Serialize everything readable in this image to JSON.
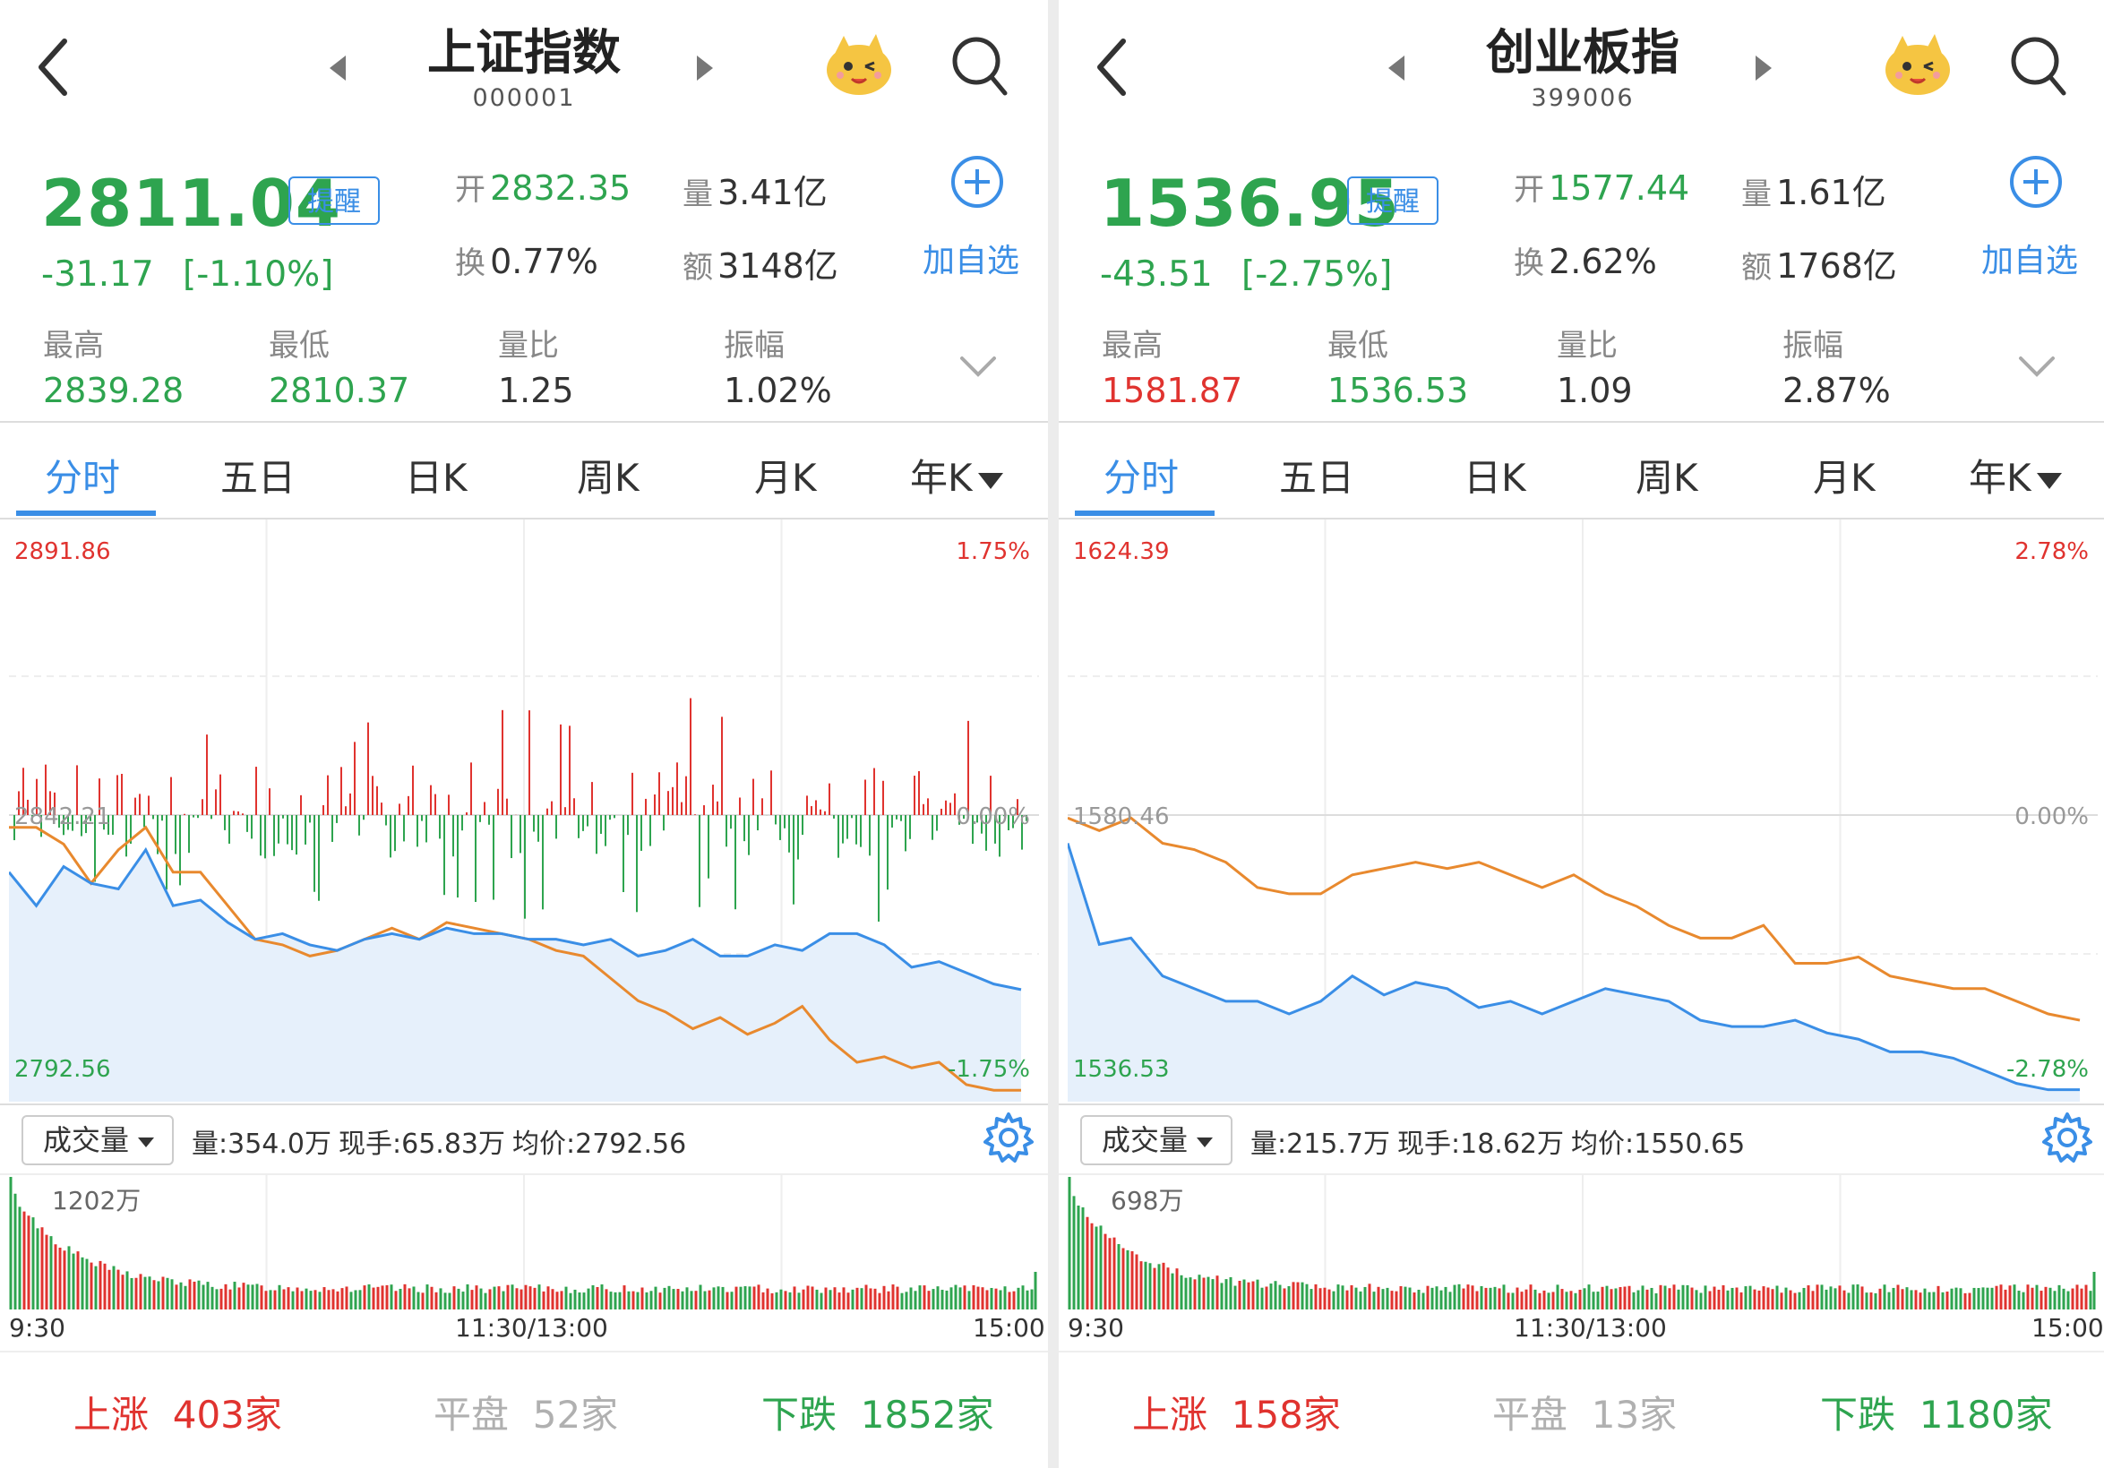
{
  "colors": {
    "green": "#2ea44f",
    "red": "#e0332f",
    "blue": "#3a8ee6",
    "orange": "#e8892e",
    "fill": "#e6f0fb"
  },
  "icons": [
    "back-arrow-icon",
    "prev-triangle-icon",
    "next-triangle-icon",
    "mascot-icon",
    "search-icon",
    "add-circle-icon",
    "chevron-down-icon",
    "settings-gear-icon",
    "dropdown-caret-icon"
  ],
  "panels": [
    {
      "title": "上证指数",
      "code": "000001",
      "price": "2811.04",
      "remind": "提醒",
      "change": "-31.17",
      "change_pct": "[-1.10%]",
      "stats": {
        "open_label": "开",
        "open": "2832.35",
        "volume_label": "量",
        "volume": "3.41亿",
        "turnover_label": "换",
        "turnover": "0.77%",
        "amount_label": "额",
        "amount": "3148亿"
      },
      "add_label": "加自选",
      "range": {
        "high_label": "最高",
        "high": "2839.28",
        "low_label": "最低",
        "low": "2810.37",
        "vr_label": "量比",
        "vr": "1.25",
        "amp_label": "振幅",
        "amp": "1.02%"
      },
      "tabs": [
        "分时",
        "五日",
        "日K",
        "周K",
        "月K",
        "年K"
      ],
      "chart_data": {
        "type": "line",
        "y_top": "2891.86",
        "y_top_pct": "1.75%",
        "y_mid": "2842.21",
        "y_mid_pct": "0.00%",
        "y_bottom": "2792.56",
        "y_bottom_pct": "-1.75%",
        "ylim": [
          2792.56,
          2891.86
        ],
        "prev_close": 2842.21,
        "series": [
          {
            "color": "blue",
            "values": [
              2832,
              2826,
              2833,
              2830,
              2829,
              2836,
              2826,
              2827,
              2823,
              2820,
              2821,
              2819,
              2818,
              2820,
              2821,
              2820,
              2822,
              2821,
              2821,
              2820,
              2820,
              2819,
              2820,
              2817,
              2818,
              2820,
              2817,
              2817,
              2819,
              2818,
              2821,
              2821,
              2819,
              2815,
              2816,
              2814,
              2812,
              2811
            ]
          },
          {
            "color": "orange",
            "values": [
              2840,
              2840,
              2837,
              2830,
              2836,
              2840,
              2832,
              2832,
              2826,
              2820,
              2819,
              2817,
              2818,
              2820,
              2822,
              2820,
              2823,
              2822,
              2821,
              2820,
              2818,
              2817,
              2813,
              2809,
              2807,
              2804,
              2806,
              2803,
              2805,
              2808,
              2802,
              2798,
              2799,
              2797,
              2798,
              2794,
              2793,
              2793
            ]
          }
        ]
      },
      "volume_ctrl": "成交量",
      "volume_info": {
        "qty": "量:354.0万",
        "now": "现手:65.83万",
        "avg": "均价:2792.56"
      },
      "volume_max": "1202万",
      "times": [
        "9:30",
        "11:30/13:00",
        "15:00"
      ],
      "breadth": {
        "up_label": "上涨",
        "up": "403家",
        "flat_label": "平盘",
        "flat": "52家",
        "down_label": "下跌",
        "down": "1852家"
      }
    },
    {
      "title": "创业板指",
      "code": "399006",
      "price": "1536.95",
      "remind": "提醒",
      "change": "-43.51",
      "change_pct": "[-2.75%]",
      "stats": {
        "open_label": "开",
        "open": "1577.44",
        "volume_label": "量",
        "volume": "1.61亿",
        "turnover_label": "换",
        "turnover": "2.62%",
        "amount_label": "额",
        "amount": "1768亿"
      },
      "add_label": "加自选",
      "range": {
        "high_label": "最高",
        "high": "1581.87",
        "low_label": "最低",
        "low": "1536.53",
        "vr_label": "量比",
        "vr": "1.09",
        "amp_label": "振幅",
        "amp": "2.87%"
      },
      "tabs": [
        "分时",
        "五日",
        "日K",
        "周K",
        "月K",
        "年K"
      ],
      "chart_data": {
        "type": "line",
        "y_top": "1624.39",
        "y_top_pct": "2.78%",
        "y_mid": "1580.46",
        "y_mid_pct": "0.00%",
        "y_bottom": "1536.53",
        "y_bottom_pct": "-2.78%",
        "ylim": [
          1536.53,
          1624.39
        ],
        "prev_close": 1580.46,
        "series": [
          {
            "color": "blue",
            "values": [
              1576,
              1560,
              1561,
              1555,
              1553,
              1551,
              1551,
              1549,
              1551,
              1555,
              1552,
              1554,
              1553,
              1550,
              1551,
              1549,
              1551,
              1553,
              1552,
              1551,
              1548,
              1547,
              1547,
              1548,
              1546,
              1545,
              1543,
              1543,
              1542,
              1540,
              1538,
              1537,
              1537
            ]
          },
          {
            "color": "orange",
            "values": [
              1580,
              1578,
              1580,
              1576,
              1575,
              1573,
              1569,
              1568,
              1568,
              1571,
              1572,
              1573,
              1572,
              1573,
              1571,
              1569,
              1571,
              1568,
              1566,
              1563,
              1561,
              1561,
              1563,
              1557,
              1557,
              1558,
              1555,
              1554,
              1553,
              1553,
              1551,
              1549,
              1548
            ]
          }
        ]
      },
      "volume_ctrl": "成交量",
      "volume_info": {
        "qty": "量:215.7万",
        "now": "现手:18.62万",
        "avg": "均价:1550.65"
      },
      "volume_max": "698万",
      "times": [
        "9:30",
        "11:30/13:00",
        "15:00"
      ],
      "breadth": {
        "up_label": "上涨",
        "up": "158家",
        "flat_label": "平盘",
        "flat": "13家",
        "down_label": "下跌",
        "down": "1180家"
      }
    }
  ]
}
